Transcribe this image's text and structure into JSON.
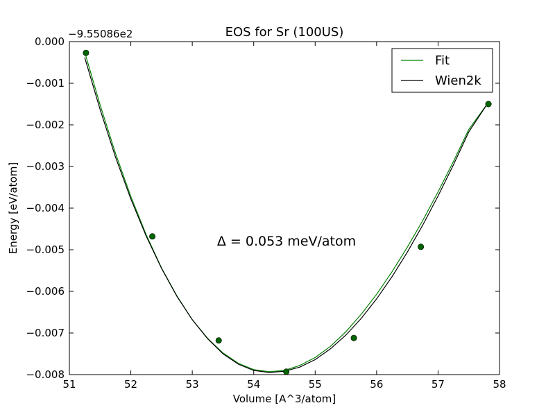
{
  "chart_data": {
    "type": "line",
    "title": "EOS for Sr (100US)",
    "xlabel": "Volume [A^3/atom]",
    "ylabel": "Energy [eV/atom]",
    "y_offset_label": "−9.55086e2",
    "annotation": "Δ = 0.053 meV/atom",
    "xlim": [
      51,
      58
    ],
    "ylim": [
      -0.008,
      0.0
    ],
    "x_ticks": [
      51,
      52,
      53,
      54,
      55,
      56,
      57,
      58
    ],
    "y_ticks": [
      0.0,
      -0.001,
      -0.002,
      -0.003,
      -0.004,
      -0.005,
      -0.006,
      -0.007,
      -0.008
    ],
    "x_tick_labels": [
      "51",
      "52",
      "53",
      "54",
      "55",
      "56",
      "57",
      "58"
    ],
    "y_tick_labels": [
      "0.000",
      "−0.001",
      "−0.002",
      "−0.003",
      "−0.004",
      "−0.005",
      "−0.006",
      "−0.007",
      "−0.008"
    ],
    "grid": false,
    "legend_position": "top-right",
    "series": [
      {
        "name": "Fit",
        "kind": "line",
        "color": "#008000",
        "x": [
          51.25,
          51.5,
          51.75,
          52.0,
          52.25,
          52.5,
          52.75,
          53.0,
          53.25,
          53.5,
          53.75,
          54.0,
          54.25,
          54.5,
          54.75,
          55.0,
          55.25,
          55.5,
          55.75,
          56.0,
          56.25,
          56.5,
          56.75,
          57.0,
          57.25,
          57.5,
          57.8
        ],
        "y": [
          -0.00025,
          -0.00152,
          -0.00268,
          -0.00372,
          -0.00464,
          -0.00544,
          -0.00611,
          -0.00668,
          -0.00713,
          -0.00748,
          -0.00773,
          -0.00788,
          -0.00793,
          -0.0079,
          -0.00778,
          -0.00759,
          -0.00732,
          -0.00697,
          -0.00655,
          -0.00607,
          -0.00553,
          -0.00494,
          -0.0043,
          -0.00361,
          -0.00288,
          -0.00211,
          -0.0015
        ]
      },
      {
        "name": "Wien2k",
        "kind": "line",
        "color": "#000000",
        "x": [
          51.25,
          51.5,
          51.75,
          52.0,
          52.25,
          52.5,
          52.75,
          53.0,
          53.25,
          53.5,
          53.75,
          54.0,
          54.25,
          54.5,
          54.75,
          55.0,
          55.25,
          55.5,
          55.75,
          56.0,
          56.25,
          56.5,
          56.75,
          57.0,
          57.25,
          57.5,
          57.8
        ],
        "y": [
          -0.00038,
          -0.00163,
          -0.00277,
          -0.00378,
          -0.00467,
          -0.00545,
          -0.00612,
          -0.00668,
          -0.00714,
          -0.0075,
          -0.00775,
          -0.0079,
          -0.00795,
          -0.00792,
          -0.00782,
          -0.00764,
          -0.00738,
          -0.00705,
          -0.00665,
          -0.00618,
          -0.00565,
          -0.00506,
          -0.00441,
          -0.00371,
          -0.00296,
          -0.00217,
          -0.0015
        ]
      },
      {
        "name": "",
        "kind": "points",
        "color": "#006400",
        "x": [
          51.27,
          52.35,
          53.43,
          54.53,
          55.63,
          56.72,
          57.82
        ],
        "y": [
          -0.00027,
          -0.00468,
          -0.00718,
          -0.00793,
          -0.00712,
          -0.00493,
          -0.0015
        ]
      }
    ]
  }
}
